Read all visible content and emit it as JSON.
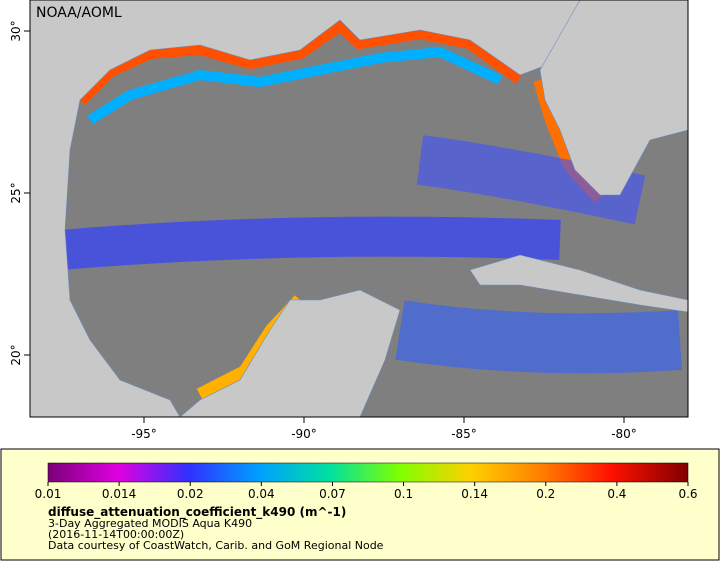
{
  "map": {
    "watermark": "NOAA/AOML",
    "lat_ticks": [
      {
        "value": 20,
        "label": "20°"
      },
      {
        "value": 25,
        "label": "25°"
      },
      {
        "value": 30,
        "label": "30°"
      }
    ],
    "lon_ticks": [
      {
        "value": -95,
        "label": "-95°"
      },
      {
        "value": -90,
        "label": "-90°"
      },
      {
        "value": -85,
        "label": "-85°"
      },
      {
        "value": -80,
        "label": "-80°"
      }
    ]
  },
  "colorbar": {
    "ticks": [
      0.01,
      0.014,
      0.02,
      0.04,
      0.07,
      0.1,
      0.14,
      0.2,
      0.4,
      0.6
    ],
    "variable": "diffuse_attenuation_coefficient_k490 (m^-1)",
    "lines": [
      "3-Day Aggregated MODIS Aqua K490",
      "(2016-11-14T00:00:00Z)",
      "Data courtesy of CoastWatch, Carib. and GoM Regional Node"
    ]
  }
}
